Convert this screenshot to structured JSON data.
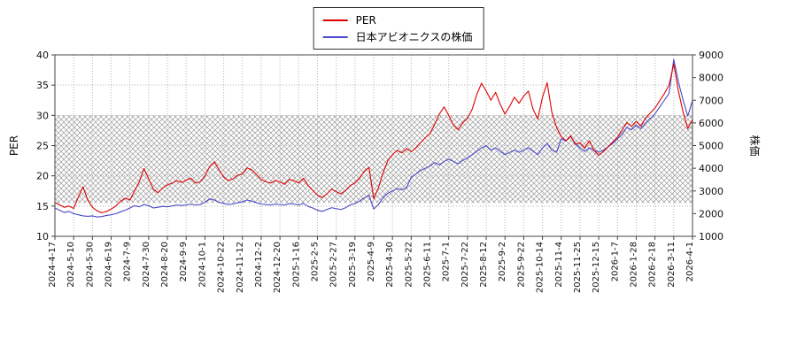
{
  "chart_data": {
    "type": "line",
    "title": "",
    "x_tick_labels": [
      "2024-4-17",
      "2024-5-10",
      "2024-5-30",
      "2024-6-19",
      "2024-7-9",
      "2024-7-30",
      "2024-8-20",
      "2024-9-9",
      "2024-10-1",
      "2024-10-22",
      "2024-11-12",
      "2024-12-2",
      "2024-12-20",
      "2025-1-16",
      "2025-2-5",
      "2025-2-27",
      "2025-3-19",
      "2025-4-9",
      "2025-4-30",
      "2025-5-22",
      "2025-6-11",
      "2025-7-1",
      "2025-7-22",
      "2025-8-12",
      "2025-9-2",
      "2025-9-22",
      "2025-10-14",
      "2025-11-4",
      "2025-11-25",
      "2025-12-15",
      "2026-1-7",
      "2026-1-28",
      "2026-2-18",
      "2026-3-11",
      "2026-4-1"
    ],
    "left_axis": {
      "label": "PER",
      "min": 10,
      "max": 40,
      "ticks": [
        10,
        15,
        20,
        25,
        30,
        35,
        40
      ]
    },
    "right_axis": {
      "label": "株価",
      "min": 1000,
      "max": 9000,
      "ticks": [
        1000,
        2000,
        3000,
        4000,
        5000,
        6000,
        7000,
        8000,
        9000
      ]
    },
    "band": {
      "axis": "left",
      "from": 15.5,
      "to": 30,
      "style": "crosshatch",
      "color": "#9a9a9a"
    },
    "grid": {
      "on": true,
      "color": "#b3b3b3",
      "style": "dotted"
    },
    "legend_position": "top-center",
    "series": [
      {
        "name": "PER",
        "axis": "left",
        "color": "#dd0000",
        "values": [
          15.6,
          15.2,
          14.8,
          15.0,
          14.6,
          16.5,
          18.2,
          16.0,
          14.8,
          14.2,
          13.9,
          14.1,
          14.5,
          15.0,
          15.8,
          16.3,
          16.0,
          17.5,
          19.0,
          21.2,
          19.5,
          17.8,
          17.2,
          18.0,
          18.5,
          18.8,
          19.2,
          18.9,
          19.3,
          19.6,
          18.8,
          19.0,
          20.0,
          21.5,
          22.3,
          21.0,
          19.8,
          19.2,
          19.5,
          20.1,
          20.3,
          21.3,
          21.0,
          20.2,
          19.4,
          19.0,
          18.8,
          19.2,
          19.0,
          18.6,
          19.4,
          19.2,
          18.8,
          19.6,
          18.4,
          17.6,
          16.8,
          16.4,
          17.0,
          17.8,
          17.4,
          17.0,
          17.6,
          18.4,
          18.8,
          19.6,
          20.8,
          21.4,
          16.2,
          18.0,
          20.5,
          22.5,
          23.5,
          24.2,
          23.8,
          24.5,
          24.0,
          24.6,
          25.5,
          26.3,
          27.0,
          28.5,
          30.2,
          31.4,
          30.0,
          28.4,
          27.6,
          28.8,
          29.5,
          31.0,
          33.5,
          35.3,
          34.0,
          32.5,
          33.8,
          31.8,
          30.2,
          31.5,
          33.0,
          32.0,
          33.2,
          34.0,
          31.0,
          29.4,
          33.0,
          35.4,
          30.5,
          28.0,
          26.5,
          25.8,
          26.6,
          25.2,
          25.5,
          24.6,
          25.8,
          24.2,
          23.4,
          24.0,
          24.8,
          25.6,
          26.4,
          27.6,
          28.8,
          28.2,
          29.0,
          28.2,
          29.6,
          30.4,
          31.2,
          32.4,
          33.6,
          35.0,
          38.5,
          34.0,
          30.5,
          27.8,
          29.3
        ]
      },
      {
        "name": "日本アビオニクスの株価",
        "axis": "right",
        "color": "#4848c8",
        "values": [
          2250,
          2150,
          2050,
          2100,
          2000,
          1950,
          1900,
          1880,
          1900,
          1850,
          1870,
          1920,
          1950,
          2000,
          2080,
          2150,
          2250,
          2350,
          2300,
          2400,
          2350,
          2250,
          2280,
          2320,
          2300,
          2340,
          2380,
          2360,
          2380,
          2420,
          2380,
          2400,
          2500,
          2650,
          2600,
          2500,
          2450,
          2400,
          2430,
          2480,
          2520,
          2600,
          2550,
          2480,
          2420,
          2400,
          2380,
          2420,
          2400,
          2380,
          2440,
          2420,
          2380,
          2450,
          2320,
          2250,
          2150,
          2100,
          2180,
          2260,
          2220,
          2180,
          2260,
          2380,
          2450,
          2550,
          2700,
          2800,
          2200,
          2400,
          2700,
          2900,
          3000,
          3100,
          3050,
          3150,
          3600,
          3750,
          3900,
          4000,
          4100,
          4250,
          4150,
          4300,
          4400,
          4300,
          4200,
          4350,
          4450,
          4600,
          4750,
          4900,
          5000,
          4800,
          4900,
          4750,
          4600,
          4700,
          4800,
          4700,
          4800,
          4900,
          4750,
          4600,
          4900,
          5100,
          4800,
          4700,
          5300,
          5200,
          5400,
          5100,
          4900,
          4750,
          4900,
          4800,
          4700,
          4800,
          4950,
          5100,
          5300,
          5500,
          5800,
          5700,
          5900,
          5750,
          6000,
          6200,
          6400,
          6700,
          7000,
          7300,
          8800,
          7800,
          7000,
          6300,
          7000
        ]
      }
    ]
  }
}
